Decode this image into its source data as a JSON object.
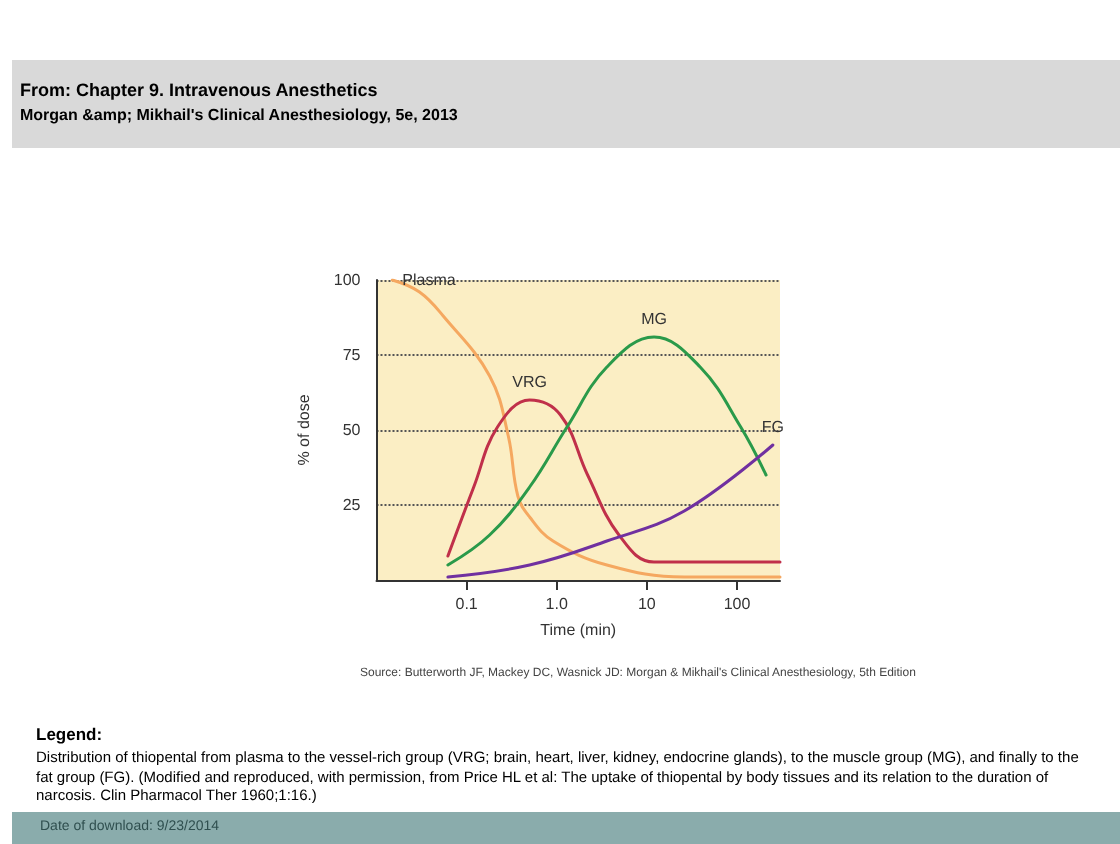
{
  "chart_data": {
    "type": "line",
    "title": "From: Chapter 9. Intravenous Anesthetics",
    "subtitle": "Morgan &amp; Mikhail's Clinical Anesthesiology, 5e,  2013",
    "xlabel": "Time (min)",
    "ylabel": "% of dose",
    "annotations": [
      "Source: Butterworth JF, Mackey DC, Wasnick JD: Morgan & Mikhail's Clinical Anesthesiology, 5th Edition",
      "Legend:",
      "Distribution of thiopental from plasma to the vessel-rich group (VRG; brain, heart, liver, kidney, endocrine glands), to the muscle group (MG), and finally to the fat group (FG). (Modified and reproduced, with permission, from Price HL et al: The uptake of thiopental by body tissues and its relation to the duration of narcosis. Clin Pharmacol Ther 1960;1:16.)",
      "Date of download:  9/23/2014"
    ],
    "log": "x",
    "xlim": [
      0.01,
      300
    ],
    "ylim": [
      0,
      100
    ],
    "xticks": [
      0.1,
      {
        "value": 1,
        "label": "1.0"
      },
      10,
      100
    ],
    "yticks": [
      25,
      50,
      75,
      100
    ],
    "grid": "y",
    "legend": false,
    "marker": "none",
    "line_style": "solid",
    "series": [
      {
        "name": "Plasma",
        "color": "#f5a860",
        "x": [
          0.015,
          0.03,
          0.055,
          0.18,
          0.29,
          0.37,
          0.5,
          0.91,
          3.6,
          26,
          300
        ],
        "values": [
          100,
          96,
          88,
          68,
          48,
          28,
          21,
          13,
          5,
          1,
          1
        ]
      },
      {
        "name": "VRG",
        "color": "#c0304a",
        "x": [
          0.062,
          0.12,
          0.22,
          0.5,
          1.1,
          2.2,
          4.9,
          12,
          300
        ],
        "values": [
          8,
          31,
          51,
          60,
          55,
          35,
          15,
          6,
          6
        ]
      },
      {
        "name": "MG",
        "color": "#2a9a4a",
        "x": [
          0.062,
          0.18,
          0.5,
          1.3,
          3.6,
          12,
          39,
          110,
          210
        ],
        "values": [
          5,
          15,
          31,
          51,
          71,
          81,
          71,
          51,
          35
        ]
      },
      {
        "name": "FG",
        "color": "#7030a0",
        "x": [
          0.062,
          0.5,
          3.6,
          26,
          250
        ],
        "values": [
          1,
          5,
          13,
          23,
          45
        ]
      }
    ]
  }
}
